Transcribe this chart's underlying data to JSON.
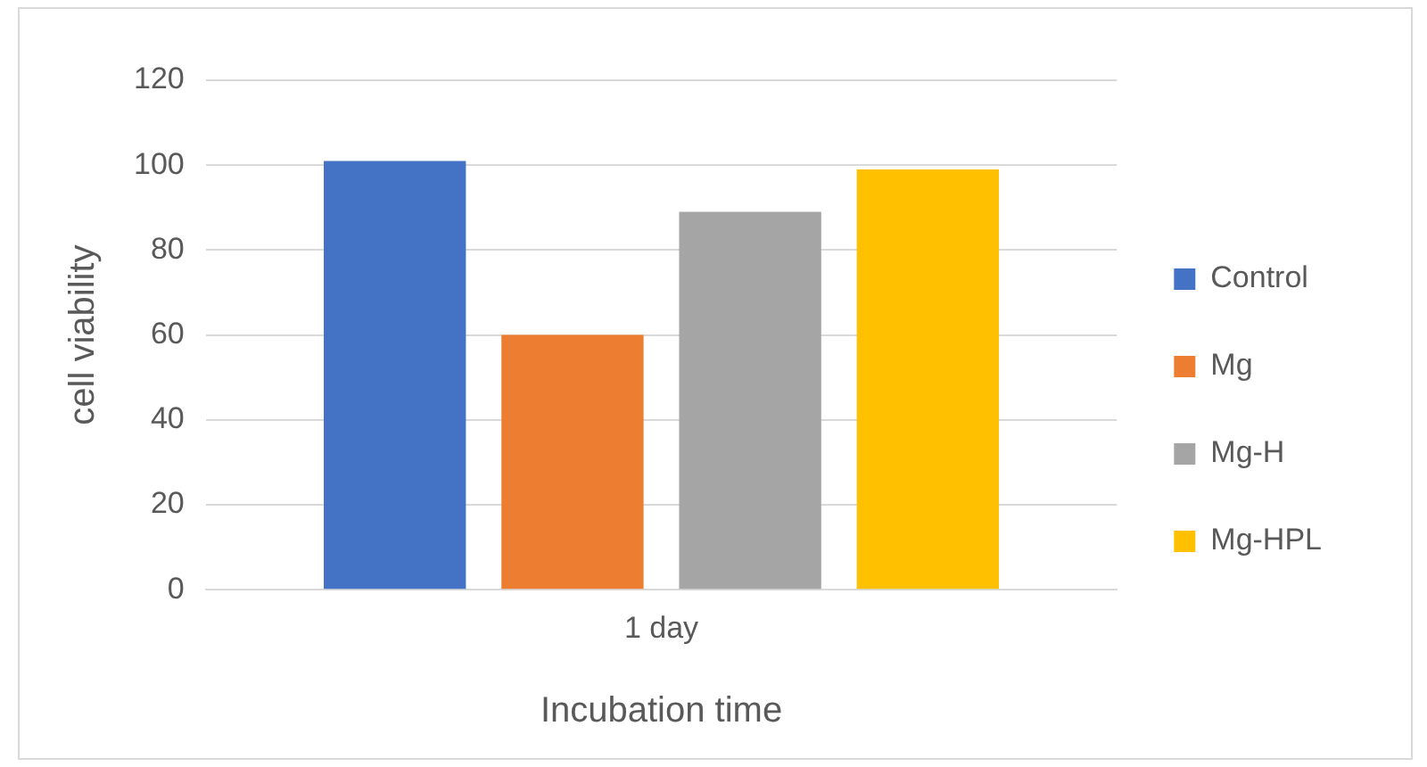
{
  "chart_data": {
    "type": "bar",
    "xlabel": "Incubation time",
    "ylabel": "cell viability",
    "categories": [
      "1 day"
    ],
    "series": [
      {
        "name": "Control",
        "color": "#4472c4",
        "values": [
          101
        ]
      },
      {
        "name": "Mg",
        "color": "#ed7d31",
        "values": [
          60
        ]
      },
      {
        "name": "Mg-H",
        "color": "#a5a5a5",
        "values": [
          89
        ]
      },
      {
        "name": "Mg-HPL",
        "color": "#ffc000",
        "values": [
          99
        ]
      }
    ],
    "ylim": [
      0,
      120
    ],
    "yticks": [
      0,
      20,
      40,
      60,
      80,
      100,
      120
    ],
    "grid": "y",
    "legend": "right"
  }
}
